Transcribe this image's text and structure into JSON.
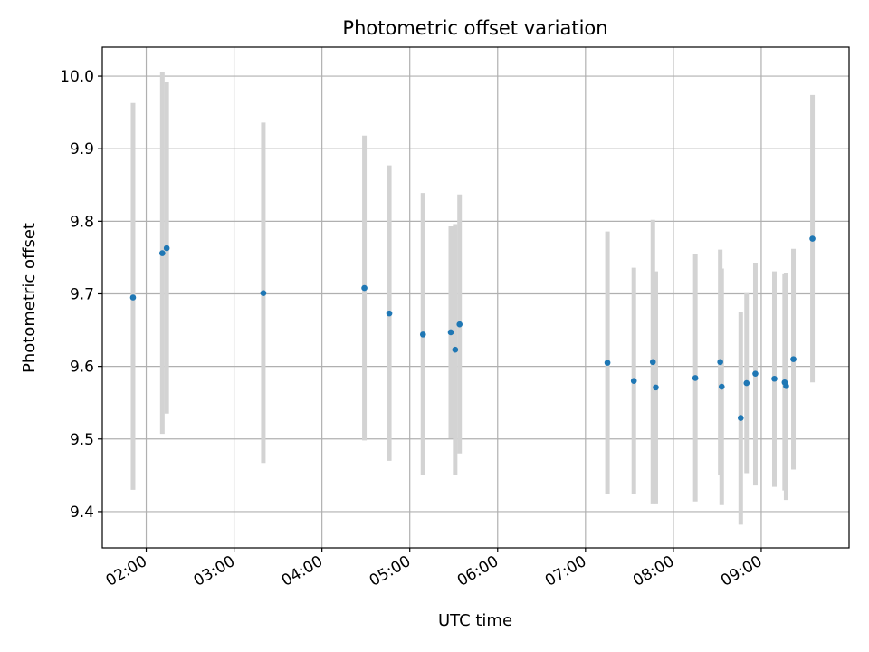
{
  "chart_data": {
    "type": "scatter",
    "title": "Photometric offset variation",
    "xlabel": "UTC time",
    "ylabel": "Photometric offset",
    "grid": true,
    "xlim": [
      "01:30",
      "10:00"
    ],
    "ylim": [
      9.35,
      10.04
    ],
    "x_ticks": [
      "02:00",
      "03:00",
      "04:00",
      "05:00",
      "06:00",
      "07:00",
      "08:00",
      "09:00"
    ],
    "y_ticks": [
      "9.4",
      "9.5",
      "9.6",
      "9.7",
      "9.8",
      "9.9",
      "10.0"
    ],
    "point_color": "#1f77b4",
    "errorbar_color": "#d3d3d3",
    "points": [
      {
        "x": "01:51",
        "y": 9.695,
        "yerr_low": 9.43,
        "yerr_high": 9.963
      },
      {
        "x": "02:11",
        "y": 9.756,
        "yerr_low": 9.507,
        "yerr_high": 10.006
      },
      {
        "x": "02:14",
        "y": 9.763,
        "yerr_low": 9.535,
        "yerr_high": 9.992
      },
      {
        "x": "03:20",
        "y": 9.701,
        "yerr_low": 9.467,
        "yerr_high": 9.936
      },
      {
        "x": "04:29",
        "y": 9.708,
        "yerr_low": 9.498,
        "yerr_high": 9.918
      },
      {
        "x": "04:46",
        "y": 9.673,
        "yerr_low": 9.47,
        "yerr_high": 9.877
      },
      {
        "x": "05:09",
        "y": 9.644,
        "yerr_low": 9.45,
        "yerr_high": 9.839
      },
      {
        "x": "05:28",
        "y": 9.647,
        "yerr_low": 9.501,
        "yerr_high": 9.793
      },
      {
        "x": "05:31",
        "y": 9.623,
        "yerr_low": 9.45,
        "yerr_high": 9.796
      },
      {
        "x": "05:34",
        "y": 9.658,
        "yerr_low": 9.48,
        "yerr_high": 9.837
      },
      {
        "x": "07:15",
        "y": 9.605,
        "yerr_low": 9.424,
        "yerr_high": 9.786
      },
      {
        "x": "07:33",
        "y": 9.58,
        "yerr_low": 9.424,
        "yerr_high": 9.736
      },
      {
        "x": "07:46",
        "y": 9.606,
        "yerr_low": 9.41,
        "yerr_high": 9.802
      },
      {
        "x": "07:48",
        "y": 9.571,
        "yerr_low": 9.41,
        "yerr_high": 9.731
      },
      {
        "x": "08:15",
        "y": 9.584,
        "yerr_low": 9.414,
        "yerr_high": 9.755
      },
      {
        "x": "08:32",
        "y": 9.606,
        "yerr_low": 9.451,
        "yerr_high": 9.761
      },
      {
        "x": "08:33",
        "y": 9.572,
        "yerr_low": 9.409,
        "yerr_high": 9.735
      },
      {
        "x": "08:46",
        "y": 9.529,
        "yerr_low": 9.382,
        "yerr_high": 9.675
      },
      {
        "x": "08:50",
        "y": 9.577,
        "yerr_low": 9.453,
        "yerr_high": 9.701
      },
      {
        "x": "08:56",
        "y": 9.59,
        "yerr_low": 9.436,
        "yerr_high": 9.743
      },
      {
        "x": "09:09",
        "y": 9.583,
        "yerr_low": 9.434,
        "yerr_high": 9.731
      },
      {
        "x": "09:16",
        "y": 9.578,
        "yerr_low": 9.429,
        "yerr_high": 9.727
      },
      {
        "x": "09:17",
        "y": 9.573,
        "yerr_low": 9.416,
        "yerr_high": 9.728
      },
      {
        "x": "09:22",
        "y": 9.61,
        "yerr_low": 9.458,
        "yerr_high": 9.762
      },
      {
        "x": "09:35",
        "y": 9.776,
        "yerr_low": 9.578,
        "yerr_high": 9.974
      }
    ]
  }
}
